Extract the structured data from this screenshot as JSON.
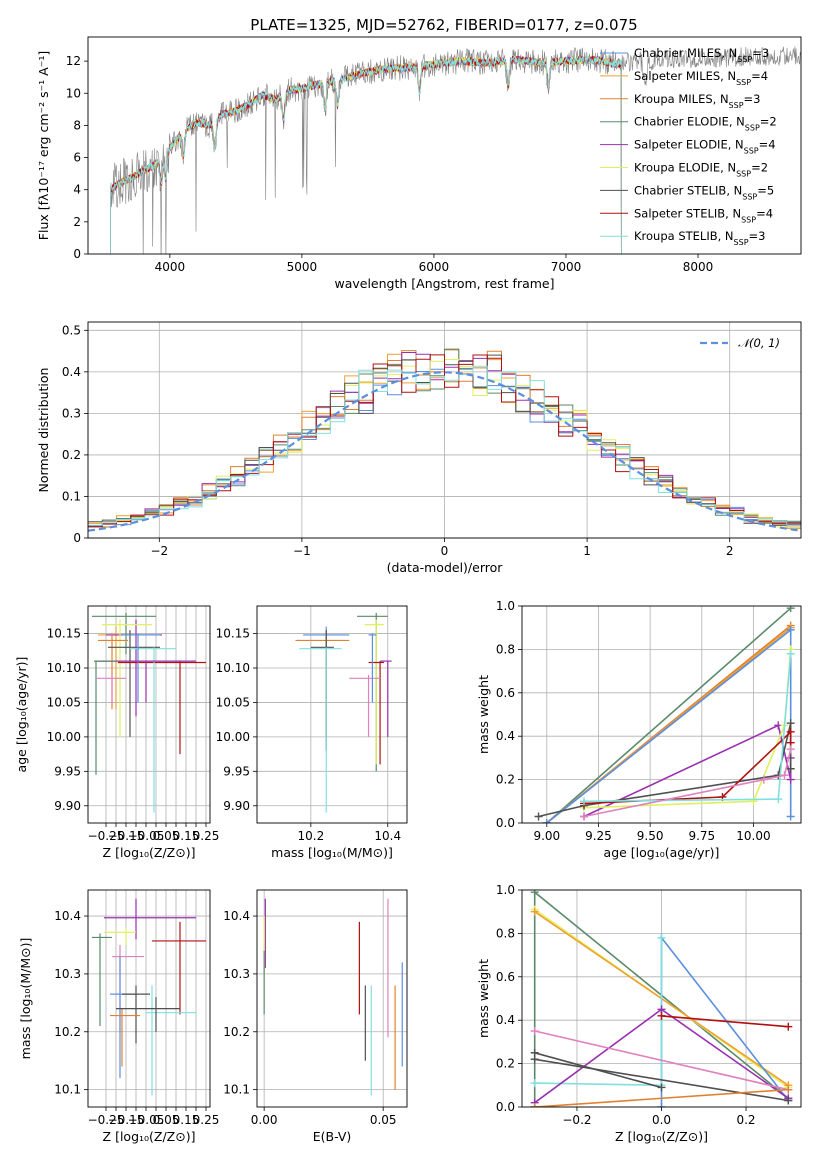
{
  "title": "PLATE=1325, MJD=52762, FIBERID=0177, z=0.075",
  "series_colors": [
    "#5b8fe0",
    "#f0a030",
    "#e08030",
    "#5a8a6a",
    "#9a30b0",
    "#e0f060",
    "#505050",
    "#b01010",
    "#80e0e0"
  ],
  "legend": [
    {
      "pre": "Chabrier MILES, N",
      "sub": "SSP",
      "post": "=3"
    },
    {
      "pre": "Salpeter MILES, N",
      "sub": "SSP",
      "post": "=4"
    },
    {
      "pre": "Kroupa MILES, N",
      "sub": "SSP",
      "post": "=3"
    },
    {
      "pre": "Chabrier ELODIE, N",
      "sub": "SSP",
      "post": "=2"
    },
    {
      "pre": "Salpeter ELODIE, N",
      "sub": "SSP",
      "post": "=4"
    },
    {
      "pre": "Kroupa ELODIE, N",
      "sub": "SSP",
      "post": "=2"
    },
    {
      "pre": "Chabrier STELIB, N",
      "sub": "SSP",
      "post": "=5"
    },
    {
      "pre": "Salpeter STELIB, N",
      "sub": "SSP",
      "post": "=4"
    },
    {
      "pre": "Kroupa STELIB, N",
      "sub": "SSP",
      "post": "=3"
    }
  ],
  "chart_data": [
    {
      "type": "line",
      "title": "PLATE=1325, MJD=52762, FIBERID=0177, z=0.075",
      "xlabel": "wavelength [Angstrom, rest frame]",
      "ylabel": "Flux [fλ10⁻¹⁷ erg cm⁻² s⁻¹ A⁻¹]",
      "xlim": [
        3380,
        8780
      ],
      "ylim": [
        0,
        13.5
      ],
      "xticks": [
        4000,
        5000,
        6000,
        7000,
        8000
      ],
      "yticks": [
        0,
        2,
        4,
        6,
        8,
        10,
        12
      ],
      "data_color": "#808080",
      "data_x": [
        3550,
        3600,
        3700,
        3800,
        3900,
        4000,
        4100,
        4200,
        4300,
        4400,
        4500,
        4600,
        4700,
        4800,
        4900,
        5000,
        5200,
        5400,
        5600,
        5800,
        6000,
        6200,
        6400,
        6600,
        6800,
        7000,
        7200,
        7400,
        7600,
        7800,
        8000,
        8200,
        8400,
        8600,
        8780
      ],
      "data_y": [
        4.0,
        4.3,
        4.7,
        5.2,
        5.6,
        6.6,
        7.6,
        8.2,
        8.0,
        8.7,
        8.9,
        9.3,
        9.9,
        9.6,
        10.2,
        10.3,
        10.7,
        11.1,
        11.5,
        11.6,
        11.8,
        12.0,
        11.9,
        12.1,
        11.9,
        12.0,
        12.1,
        11.8,
        12.0,
        12.1,
        12.2,
        12.2,
        12.3,
        12.3,
        12.4
      ],
      "model_range": [
        3550,
        7420
      ]
    },
    {
      "type": "histogram",
      "xlabel": "(data-model)/error",
      "ylabel": "Normed distribution",
      "xlim": [
        -2.5,
        2.5
      ],
      "ylim": [
        0,
        0.52
      ],
      "xticks": [
        -2,
        -1,
        0,
        1,
        2
      ],
      "yticks": [
        0,
        0.1,
        0.2,
        0.3,
        0.4,
        0.5
      ],
      "grid": true,
      "legend": {
        "label": "𝒩(0, 1)",
        "placement": "top-right"
      },
      "gaussian": {
        "mean": 0,
        "std": 1,
        "color": "#5b8fe0"
      }
    },
    {
      "type": "errorbar",
      "xlabel": "Z [log₁₀(Z/Z⊙)]",
      "ylabel": "age  [log₁₀(age/yr)]",
      "xlim": [
        -0.34,
        0.27
      ],
      "ylim": [
        9.875,
        10.19
      ],
      "xticks": [
        -0.25,
        -0.2,
        -0.15,
        -0.1,
        -0.05,
        0.0,
        0.05,
        0.1,
        0.15,
        0.2,
        0.25
      ],
      "xticklabels": [
        "−0.25",
        "",
        "−0.15",
        "",
        "−0.05",
        "",
        "0.05",
        "",
        "0.15",
        "",
        "0.25"
      ],
      "yticks": [
        9.9,
        9.95,
        10.0,
        10.05,
        10.1,
        10.15
      ],
      "grid": true,
      "points": [
        {
          "c": 1,
          "x": -0.2,
          "y": 10.148,
          "xe": [
            -0.29,
            -0.12
          ],
          "ye": [
            10.04,
            10.16
          ]
        },
        {
          "c": 4,
          "x": -0.1,
          "y": 10.148,
          "xe": [
            -0.25,
            0.03
          ],
          "ye": [
            10.03,
            10.17
          ]
        },
        {
          "c": 3,
          "x": -0.15,
          "y": 10.175,
          "xe": [
            -0.32,
            0.0
          ],
          "ye": [
            10.12,
            10.18
          ]
        },
        {
          "c": 5,
          "x": -0.18,
          "y": 10.163,
          "xe": [
            -0.27,
            -0.02
          ],
          "ye": [
            10.0,
            10.17
          ]
        },
        {
          "c": 2,
          "x": -0.22,
          "y": 10.14,
          "xe": [
            -0.29,
            -0.14
          ],
          "ye": [
            10.04,
            10.15
          ]
        },
        {
          "c": 6,
          "x": -0.13,
          "y": 10.13,
          "xe": [
            -0.24,
            0.02
          ],
          "ye": [
            10.0,
            10.155
          ]
        },
        {
          "c": 7,
          "x": 0.12,
          "y": 10.108,
          "xe": [
            -0.19,
            0.25
          ],
          "ye": [
            9.975,
            10.11
          ]
        },
        {
          "c": 8,
          "x": -0.01,
          "y": 10.128,
          "xe": [
            -0.13,
            0.1
          ],
          "ye": [
            9.89,
            10.13
          ]
        },
        {
          "c": 0,
          "x": -0.09,
          "y": 10.148,
          "xe": [
            -0.17,
            0.02
          ],
          "ye": [
            10.05,
            10.15
          ]
        },
        {
          "c": 4,
          "x": -0.05,
          "y": 10.11,
          "xe": [
            -0.3,
            0.2
          ],
          "ye": [
            10.05,
            10.11
          ]
        },
        {
          "c": 3,
          "x": -0.3,
          "y": 10.11,
          "xe": [
            -0.31,
            -0.2
          ],
          "ye": [
            9.945,
            10.11
          ]
        },
        {
          "c": "#e080c0",
          "x": -0.22,
          "y": 10.085,
          "xe": [
            -0.3,
            -0.15
          ],
          "ye": [
            10.05,
            10.09
          ]
        }
      ]
    },
    {
      "type": "errorbar",
      "xlabel": "mass [log₁₀(M/M⊙)]",
      "ylabel": "",
      "xlim": [
        10.06,
        10.45
      ],
      "ylim": [
        9.875,
        10.19
      ],
      "xticks": [
        10.2,
        10.4
      ],
      "xticklabels": [
        "10.2",
        "10.4"
      ],
      "yticks": [
        9.9,
        9.95,
        10.0,
        10.05,
        10.1,
        10.15
      ],
      "grid": true,
      "points": [
        {
          "c": 0,
          "x": 10.24,
          "y": 10.148,
          "xe": [
            10.18,
            10.3
          ],
          "ye": [
            10.04,
            10.16
          ]
        },
        {
          "c": 2,
          "x": 10.24,
          "y": 10.14,
          "xe": [
            10.16,
            10.3
          ],
          "ye": [
            10.0,
            10.15
          ]
        },
        {
          "c": 3,
          "x": 10.37,
          "y": 10.175,
          "xe": [
            10.32,
            10.4
          ],
          "ye": [
            9.95,
            10.18
          ]
        },
        {
          "c": 5,
          "x": 10.37,
          "y": 10.163,
          "xe": [
            10.34,
            10.39
          ],
          "ye": [
            9.96,
            10.17
          ]
        },
        {
          "c": 6,
          "x": 10.24,
          "y": 10.13,
          "xe": [
            10.2,
            10.26
          ],
          "ye": [
            9.98,
            10.155
          ]
        },
        {
          "c": 8,
          "x": 10.24,
          "y": 10.128,
          "xe": [
            10.17,
            10.28
          ],
          "ye": [
            9.89,
            10.13
          ]
        },
        {
          "c": 7,
          "x": 10.38,
          "y": 10.108,
          "xe": [
            10.35,
            10.39
          ],
          "ye": [
            9.96,
            10.11
          ]
        },
        {
          "c": 4,
          "x": 10.4,
          "y": 10.11,
          "xe": [
            10.38,
            10.41
          ],
          "ye": [
            10.0,
            10.11
          ]
        },
        {
          "c": "#e080c0",
          "x": 10.35,
          "y": 10.085,
          "xe": [
            10.3,
            10.38
          ],
          "ye": [
            10.0,
            10.09
          ]
        },
        {
          "c": 0,
          "x": 10.36,
          "y": 10.148,
          "xe": [
            10.35,
            10.37
          ],
          "ye": [
            10.05,
            10.15
          ]
        }
      ]
    },
    {
      "type": "line",
      "xlabel": "age  [log₁₀(age/yr)]",
      "ylabel": "mass weight",
      "xlim": [
        8.88,
        10.23
      ],
      "ylim": [
        0,
        1.0
      ],
      "xticks": [
        9.0,
        9.25,
        9.5,
        9.75,
        10.0
      ],
      "xticklabels": [
        "9.00",
        "9.25",
        "9.50",
        "9.75",
        "10.00"
      ],
      "yticks": [
        0,
        0.2,
        0.4,
        0.6,
        0.8,
        1.0
      ],
      "grid": true,
      "series": [
        {
          "c": 3,
          "x": [
            9.0,
            10.18
          ],
          "y": [
            0.0,
            0.99
          ]
        },
        {
          "c": 2,
          "x": [
            9.0,
            10.18
          ],
          "y": [
            0.0,
            0.91
          ]
        },
        {
          "c": 1,
          "x": [
            9.0,
            10.18
          ],
          "y": [
            0.0,
            0.9
          ]
        },
        {
          "c": 0,
          "x": [
            9.0,
            10.18,
            10.18
          ],
          "y": [
            0.0,
            0.89,
            0.03
          ]
        },
        {
          "c": 4,
          "x": [
            9.18,
            10.12,
            10.18,
            10.18
          ],
          "y": [
            0.03,
            0.45,
            0.2,
            0.3
          ]
        },
        {
          "c": 5,
          "x": [
            9.18,
            10.0,
            10.15,
            10.18
          ],
          "y": [
            0.07,
            0.1,
            0.45,
            0.8
          ]
        },
        {
          "c": 6,
          "x": [
            8.96,
            9.18,
            10.12,
            10.18,
            10.18
          ],
          "y": [
            0.03,
            0.08,
            0.22,
            0.46,
            0.25
          ]
        },
        {
          "c": 7,
          "x": [
            9.18,
            9.85,
            10.18,
            10.18
          ],
          "y": [
            0.09,
            0.12,
            0.42,
            0.37
          ]
        },
        {
          "c": 8,
          "x": [
            9.18,
            10.12,
            10.18
          ],
          "y": [
            0.1,
            0.11,
            0.78
          ]
        },
        {
          "c": "#e080c0",
          "x": [
            9.18,
            10.05,
            10.15,
            10.18
          ],
          "y": [
            0.03,
            0.2,
            0.22,
            0.34
          ]
        }
      ]
    },
    {
      "type": "errorbar",
      "xlabel": "Z [log₁₀(Z/Z⊙)]",
      "ylabel": "mass [log₁₀(M/M⊙)]",
      "xlim": [
        -0.34,
        0.27
      ],
      "ylim": [
        10.07,
        10.445
      ],
      "xticks": [
        -0.25,
        -0.2,
        -0.15,
        -0.1,
        -0.05,
        0.0,
        0.05,
        0.1,
        0.15,
        0.2,
        0.25
      ],
      "xticklabels": [
        "−0.25",
        "",
        "−0.15",
        "",
        "−0.05",
        "",
        "0.05",
        "",
        "0.15",
        "",
        "0.25"
      ],
      "yticks": [
        10.1,
        10.2,
        10.3,
        10.4
      ],
      "grid": true,
      "points": [
        {
          "c": 4,
          "x": -0.1,
          "y": 10.397,
          "xe": [
            -0.26,
            0.2
          ],
          "ye": [
            10.36,
            10.43
          ]
        },
        {
          "c": 5,
          "x": -0.15,
          "y": 10.372,
          "xe": [
            -0.26,
            -0.1
          ],
          "ye": [
            10.35,
            10.38
          ]
        },
        {
          "c": 3,
          "x": -0.28,
          "y": 10.363,
          "xe": [
            -0.32,
            -0.22
          ],
          "ye": [
            10.21,
            10.37
          ]
        },
        {
          "c": 7,
          "x": 0.12,
          "y": 10.357,
          "xe": [
            -0.02,
            0.25
          ],
          "ye": [
            10.23,
            10.39
          ]
        },
        {
          "c": "#e080c0",
          "x": -0.18,
          "y": 10.33,
          "xe": [
            -0.22,
            -0.06
          ],
          "ye": [
            10.2,
            10.35
          ]
        },
        {
          "c": 0,
          "x": -0.18,
          "y": 10.265,
          "xe": [
            -0.23,
            -0.1
          ],
          "ye": [
            10.12,
            10.33
          ]
        },
        {
          "c": 6,
          "x": -0.1,
          "y": 10.265,
          "xe": [
            -0.17,
            -0.03
          ],
          "ye": [
            10.18,
            10.28
          ]
        },
        {
          "c": 8,
          "x": -0.02,
          "y": 10.233,
          "xe": [
            -0.05,
            0.2
          ],
          "ye": [
            10.09,
            10.28
          ]
        },
        {
          "c": 2,
          "x": -0.17,
          "y": 10.228,
          "xe": [
            -0.23,
            -0.08
          ],
          "ye": [
            10.14,
            10.24
          ]
        },
        {
          "c": 6,
          "x": 0.0,
          "y": 10.24,
          "xe": [
            -0.2,
            0.12
          ],
          "ye": [
            10.2,
            10.26
          ]
        }
      ]
    },
    {
      "type": "errorbar",
      "xlabel": "E(B-V)",
      "ylabel": "",
      "xlim": [
        -0.003,
        0.06
      ],
      "ylim": [
        10.07,
        10.445
      ],
      "xticks": [
        0.0,
        0.05
      ],
      "xticklabels": [
        "0.00",
        "0.05"
      ],
      "yticks": [
        10.1,
        10.2,
        10.3,
        10.4
      ],
      "grid": true,
      "points": [
        {
          "c": 4,
          "x": 0.0005,
          "y": 10.4,
          "xe": [
            0.0005,
            0.0005
          ],
          "ye": [
            10.31,
            10.43
          ]
        },
        {
          "c": 5,
          "x": 0.0,
          "y": 10.37,
          "xe": [
            0.0,
            0.0
          ],
          "ye": [
            10.3,
            10.4
          ]
        },
        {
          "c": 3,
          "x": 0.0,
          "y": 10.3,
          "xe": [
            0.0,
            0.0
          ],
          "ye": [
            10.23,
            10.34
          ]
        },
        {
          "c": 7,
          "x": 0.04,
          "y": 10.33,
          "xe": [
            0.04,
            0.04
          ],
          "ye": [
            10.23,
            10.39
          ]
        },
        {
          "c": 8,
          "x": 0.045,
          "y": 10.2,
          "xe": [
            0.045,
            0.045
          ],
          "ye": [
            10.09,
            10.28
          ]
        },
        {
          "c": 6,
          "x": 0.0425,
          "y": 10.22,
          "xe": [
            0.0425,
            0.0425
          ],
          "ye": [
            10.15,
            10.28
          ]
        },
        {
          "c": "#e080c0",
          "x": 0.052,
          "y": 10.33,
          "xe": [
            0.052,
            0.052
          ],
          "ye": [
            10.19,
            10.43
          ]
        },
        {
          "c": 2,
          "x": 0.055,
          "y": 10.2,
          "xe": [
            0.055,
            0.055
          ],
          "ye": [
            10.1,
            10.28
          ]
        },
        {
          "c": 0,
          "x": 0.058,
          "y": 10.24,
          "xe": [
            0.058,
            0.058
          ],
          "ye": [
            10.14,
            10.32
          ]
        }
      ]
    },
    {
      "type": "line",
      "xlabel": "Z [log₁₀(Z/Z⊙)]",
      "ylabel": "mass weight",
      "xlim": [
        -0.33,
        0.33
      ],
      "ylim": [
        0,
        1.0
      ],
      "xticks": [
        -0.2,
        0.0,
        0.2
      ],
      "xticklabels": [
        "−0.2",
        "0.0",
        "0.2"
      ],
      "yticks": [
        0,
        0.2,
        0.4,
        0.6,
        0.8,
        1.0
      ],
      "grid": true,
      "series": [
        {
          "c": 3,
          "x": [
            -0.3,
            -0.3,
            0.3
          ],
          "y": [
            0.0,
            0.99,
            0.04
          ]
        },
        {
          "c": 5,
          "x": [
            -0.3,
            0.3
          ],
          "y": [
            0.91,
            0.09
          ]
        },
        {
          "c": 1,
          "x": [
            -0.3,
            0.3
          ],
          "y": [
            0.9,
            0.1
          ]
        },
        {
          "c": 0,
          "x": [
            0.0,
            0.0,
            0.3
          ],
          "y": [
            0.0,
            0.78,
            0.03
          ]
        },
        {
          "c": 8,
          "x": [
            -0.3,
            0.0,
            0.0
          ],
          "y": [
            0.11,
            0.1,
            0.78
          ]
        },
        {
          "c": 4,
          "x": [
            -0.3,
            0.0,
            0.3
          ],
          "y": [
            0.02,
            0.45,
            0.04
          ]
        },
        {
          "c": 6,
          "x": [
            -0.3,
            0.0
          ],
          "y": [
            0.25,
            0.09
          ]
        },
        {
          "c": 6,
          "x": [
            -0.3,
            0.3
          ],
          "y": [
            0.22,
            0.03
          ]
        },
        {
          "c": 7,
          "x": [
            0.0,
            0.3
          ],
          "y": [
            0.42,
            0.37
          ]
        },
        {
          "c": "#e080c0",
          "x": [
            -0.3,
            0.3
          ],
          "y": [
            0.35,
            0.08
          ]
        },
        {
          "c": 2,
          "x": [
            -0.3,
            0.3
          ],
          "y": [
            0.0,
            0.08
          ]
        }
      ]
    }
  ]
}
